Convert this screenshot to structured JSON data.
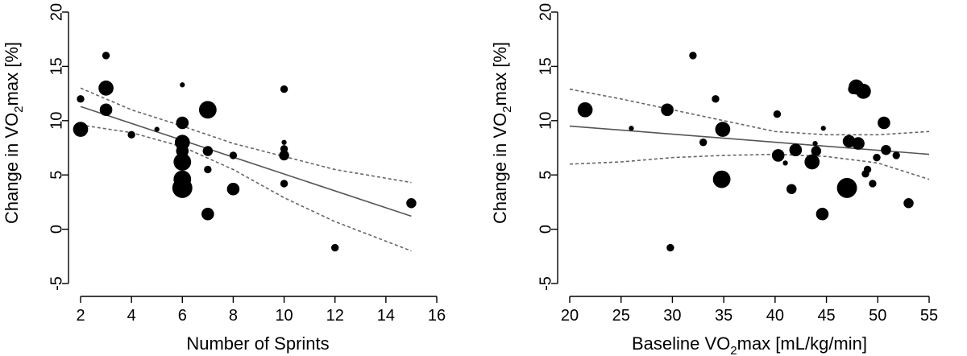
{
  "chart_data": [
    {
      "type": "scatter",
      "xlabel": "Number of Sprints",
      "ylabel_parts": [
        "Change in VO",
        "2",
        "max [%]"
      ],
      "xlim": [
        2,
        16
      ],
      "ylim": [
        -5,
        20
      ],
      "x_ticks": [
        2,
        4,
        6,
        8,
        10,
        12,
        14,
        16
      ],
      "y_ticks": [
        -5,
        0,
        5,
        10,
        15,
        20
      ],
      "points": [
        {
          "x": 2,
          "y": 9.2,
          "weight": 5
        },
        {
          "x": 2,
          "y": 12.0,
          "weight": 2
        },
        {
          "x": 3,
          "y": 16.0,
          "weight": 2
        },
        {
          "x": 3,
          "y": 13.0,
          "weight": 5
        },
        {
          "x": 3,
          "y": 11.0,
          "weight": 4
        },
        {
          "x": 4,
          "y": 8.7,
          "weight": 2
        },
        {
          "x": 5,
          "y": 9.2,
          "weight": 1
        },
        {
          "x": 6,
          "y": 13.3,
          "weight": 1
        },
        {
          "x": 6,
          "y": 9.8,
          "weight": 4
        },
        {
          "x": 6,
          "y": 8.0,
          "weight": 5
        },
        {
          "x": 6,
          "y": 7.2,
          "weight": 4
        },
        {
          "x": 6,
          "y": 6.2,
          "weight": 6
        },
        {
          "x": 6,
          "y": 4.6,
          "weight": 6
        },
        {
          "x": 6,
          "y": 3.8,
          "weight": 7
        },
        {
          "x": 7,
          "y": 11.0,
          "weight": 6
        },
        {
          "x": 7,
          "y": 7.2,
          "weight": 3
        },
        {
          "x": 7,
          "y": 5.5,
          "weight": 2
        },
        {
          "x": 7,
          "y": 1.4,
          "weight": 4
        },
        {
          "x": 8,
          "y": 6.8,
          "weight": 2
        },
        {
          "x": 8,
          "y": 3.7,
          "weight": 4
        },
        {
          "x": 10,
          "y": 12.9,
          "weight": 2
        },
        {
          "x": 10,
          "y": 8.0,
          "weight": 1
        },
        {
          "x": 10,
          "y": 7.4,
          "weight": 2
        },
        {
          "x": 10,
          "y": 6.8,
          "weight": 3
        },
        {
          "x": 10,
          "y": 4.2,
          "weight": 2
        },
        {
          "x": 12,
          "y": -1.7,
          "weight": 2
        },
        {
          "x": 15,
          "y": 2.4,
          "weight": 3
        }
      ],
      "fit": {
        "x": [
          2,
          15
        ],
        "y": [
          11.3,
          1.2
        ]
      },
      "ci_lower": {
        "x": [
          2,
          4,
          6,
          8,
          10,
          12,
          15
        ],
        "y": [
          9.6,
          8.9,
          7.6,
          5.5,
          2.9,
          0.7,
          -2.0
        ]
      },
      "ci_upper": {
        "x": [
          2,
          4,
          6,
          8,
          10,
          12,
          15
        ],
        "y": [
          13.0,
          11.0,
          9.5,
          7.9,
          6.7,
          5.5,
          4.3
        ]
      }
    },
    {
      "type": "scatter",
      "xlabel_parts": [
        "Baseline VO",
        "2",
        "max [mL/kg/min]"
      ],
      "ylabel_parts": [
        "Change in VO",
        "2",
        "max [%]"
      ],
      "xlim": [
        20,
        55
      ],
      "ylim": [
        -5,
        20
      ],
      "x_ticks": [
        20,
        25,
        30,
        35,
        40,
        45,
        50,
        55
      ],
      "y_ticks": [
        -5,
        0,
        5,
        10,
        15,
        20
      ],
      "points": [
        {
          "x": 21.5,
          "y": 11.0,
          "weight": 5
        },
        {
          "x": 26.0,
          "y": 9.3,
          "weight": 1
        },
        {
          "x": 29.5,
          "y": 11.0,
          "weight": 4
        },
        {
          "x": 29.8,
          "y": -1.7,
          "weight": 2
        },
        {
          "x": 32.0,
          "y": 16.0,
          "weight": 2
        },
        {
          "x": 33.0,
          "y": 8.0,
          "weight": 2
        },
        {
          "x": 34.2,
          "y": 12.0,
          "weight": 2
        },
        {
          "x": 34.8,
          "y": 4.6,
          "weight": 6
        },
        {
          "x": 34.9,
          "y": 9.2,
          "weight": 5
        },
        {
          "x": 40.2,
          "y": 10.6,
          "weight": 2
        },
        {
          "x": 40.3,
          "y": 6.8,
          "weight": 4
        },
        {
          "x": 41.0,
          "y": 6.1,
          "weight": 1
        },
        {
          "x": 41.6,
          "y": 3.7,
          "weight": 3
        },
        {
          "x": 42.0,
          "y": 7.3,
          "weight": 4
        },
        {
          "x": 43.6,
          "y": 6.2,
          "weight": 5
        },
        {
          "x": 43.9,
          "y": 7.9,
          "weight": 1
        },
        {
          "x": 44.0,
          "y": 7.2,
          "weight": 3
        },
        {
          "x": 44.6,
          "y": 1.4,
          "weight": 4
        },
        {
          "x": 44.7,
          "y": 9.3,
          "weight": 1
        },
        {
          "x": 47.0,
          "y": 3.8,
          "weight": 7
        },
        {
          "x": 47.2,
          "y": 8.1,
          "weight": 4
        },
        {
          "x": 47.6,
          "y": 12.9,
          "weight": 3
        },
        {
          "x": 47.9,
          "y": 13.1,
          "weight": 5
        },
        {
          "x": 48.1,
          "y": 7.9,
          "weight": 4
        },
        {
          "x": 48.6,
          "y": 12.7,
          "weight": 5
        },
        {
          "x": 48.8,
          "y": 5.1,
          "weight": 2
        },
        {
          "x": 49.0,
          "y": 5.5,
          "weight": 2
        },
        {
          "x": 49.5,
          "y": 4.2,
          "weight": 2
        },
        {
          "x": 49.9,
          "y": 6.6,
          "weight": 2
        },
        {
          "x": 50.6,
          "y": 9.8,
          "weight": 4
        },
        {
          "x": 50.8,
          "y": 7.3,
          "weight": 3
        },
        {
          "x": 51.8,
          "y": 6.8,
          "weight": 2
        },
        {
          "x": 53.0,
          "y": 2.4,
          "weight": 3
        }
      ],
      "fit": {
        "x": [
          20,
          55
        ],
        "y": [
          9.5,
          6.9
        ]
      },
      "ci_lower": {
        "x": [
          20,
          25,
          30,
          35,
          40,
          45,
          50,
          55
        ],
        "y": [
          6.0,
          6.2,
          6.6,
          6.8,
          6.9,
          6.7,
          6.1,
          4.6
        ]
      },
      "ci_upper": {
        "x": [
          20,
          25,
          30,
          35,
          40,
          45,
          50,
          55
        ],
        "y": [
          12.9,
          12.0,
          11.0,
          10.0,
          9.0,
          8.7,
          8.7,
          9.0
        ]
      }
    }
  ]
}
